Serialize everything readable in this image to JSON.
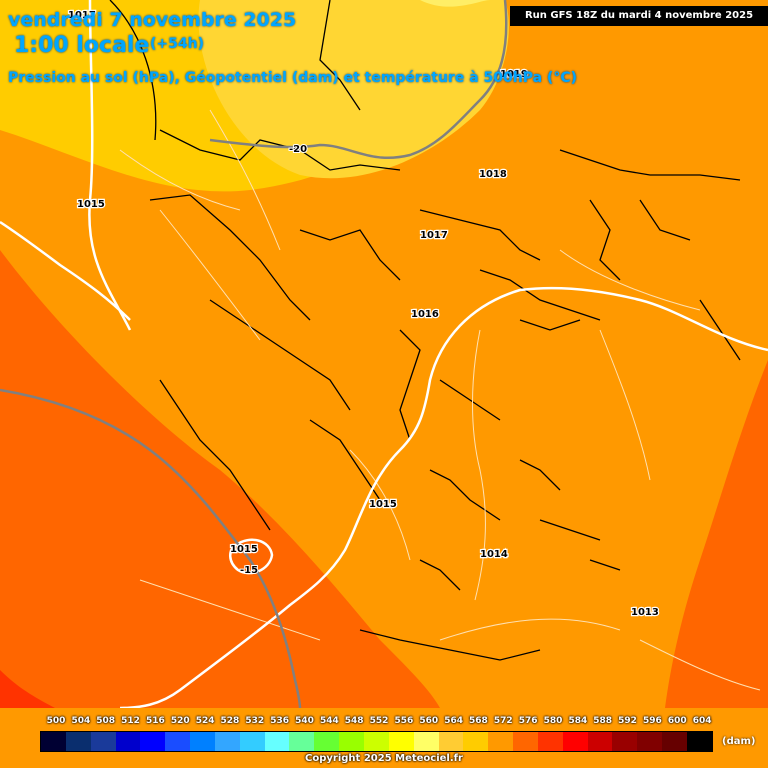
{
  "header": {
    "date": "vendredi 7 novembre 2025",
    "local_time": "1:00 locale",
    "lead": "(+54h)",
    "parameter": "Pression au sol (hPa), Géopotentiel (dam) et température à 500hPa (°C)"
  },
  "run_info": "Run GFS 18Z du mardi 4 novembre 2025",
  "isobar_labels": [
    "1017",
    "1015",
    "1019",
    "1018",
    "1017",
    "1016",
    "1015",
    "1014",
    "1013",
    "1015"
  ],
  "temperature_labels": [
    "-20",
    "-15"
  ],
  "colorbar": {
    "unit": "(dam)",
    "labels": [
      "500",
      "504",
      "508",
      "512",
      "516",
      "520",
      "524",
      "528",
      "532",
      "536",
      "540",
      "544",
      "548",
      "552",
      "556",
      "560",
      "564",
      "568",
      "572",
      "576",
      "580",
      "584",
      "588",
      "592",
      "596",
      "600",
      "604"
    ],
    "colors": [
      "#000033",
      "#0a2e6e",
      "#1a3a9a",
      "#0000cc",
      "#0000ff",
      "#1a4dff",
      "#0080ff",
      "#33a6ff",
      "#33ccff",
      "#66ffff",
      "#66ff99",
      "#66ff33",
      "#99ff00",
      "#ccff00",
      "#ffff00",
      "#ffff66",
      "#ffcc33",
      "#ffcc00",
      "#ff9900",
      "#ff6600",
      "#ff3300",
      "#ff0000",
      "#cc0000",
      "#990000",
      "#800000",
      "#660000",
      "#000000"
    ]
  },
  "copyright": "Copyright 2025 Meteociel.fr"
}
